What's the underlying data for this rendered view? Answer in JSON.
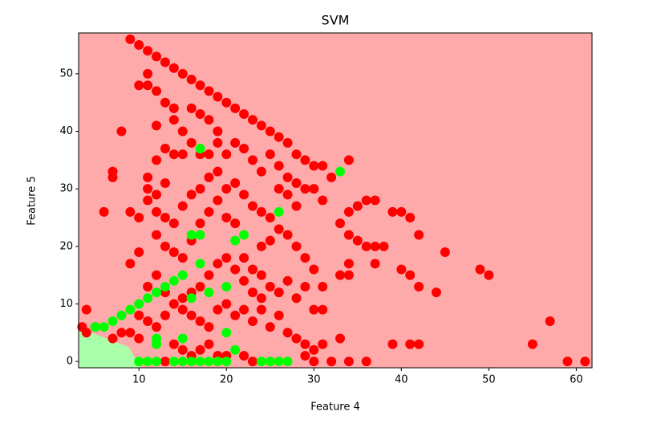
{
  "chart_data": {
    "type": "scatter",
    "title": "SVM",
    "x_label": "Feature 4",
    "y_label": "Feature 5",
    "xlim": [
      3.1,
      61.8
    ],
    "ylim": [
      -1.1,
      57.1
    ],
    "xticks": [
      10,
      20,
      30,
      40,
      50,
      60
    ],
    "yticks": [
      0,
      10,
      20,
      30,
      40,
      50
    ],
    "series": [
      {
        "color": "#ff0000",
        "x": [
          9,
          10,
          11,
          12,
          13,
          14,
          15,
          16,
          17,
          18,
          19,
          20,
          21,
          22,
          23,
          24,
          25,
          26,
          27,
          28,
          29,
          30,
          31,
          32,
          34,
          8,
          7,
          7,
          6,
          9,
          10,
          9,
          10,
          11,
          4,
          4,
          5,
          33,
          34,
          35,
          36,
          37,
          39,
          40,
          41,
          42,
          45,
          34,
          35,
          36,
          37,
          38,
          34,
          37,
          40,
          41,
          42,
          44,
          49,
          50,
          39,
          41,
          42,
          55,
          57,
          59,
          61,
          33,
          31,
          31,
          33,
          34,
          31,
          31,
          32,
          34,
          36,
          30,
          29,
          10,
          11,
          11,
          12,
          13,
          14,
          12,
          13,
          12,
          11,
          11,
          11,
          12,
          13,
          14,
          15,
          16,
          17,
          18,
          19,
          20,
          21,
          22,
          23,
          24,
          25,
          26,
          27,
          28,
          29,
          30,
          12,
          13,
          14,
          15,
          16,
          17,
          18,
          19,
          20,
          21,
          22,
          23,
          24,
          25,
          26,
          27,
          28,
          29,
          30,
          12,
          13,
          14,
          15,
          16,
          17,
          18,
          19,
          20,
          21,
          22,
          23,
          24,
          25,
          26,
          27,
          28,
          29,
          30,
          10,
          11,
          12,
          13,
          14,
          15,
          16,
          17,
          18,
          19,
          20,
          22,
          23,
          13,
          10,
          9,
          8,
          7,
          3.5,
          14,
          15,
          16,
          17,
          18,
          19,
          12,
          13,
          14,
          15,
          16,
          17,
          18,
          19,
          20,
          21,
          22,
          23,
          24,
          25,
          26,
          27,
          28,
          29,
          30,
          20,
          21,
          22,
          23,
          24,
          19,
          18,
          17,
          16,
          15,
          26,
          27,
          28,
          25,
          24
        ],
        "values": [
          56,
          55,
          54,
          53,
          52,
          51,
          50,
          49,
          48,
          47,
          46,
          45,
          44,
          43,
          42,
          41,
          40,
          39,
          38,
          36,
          35,
          34,
          34,
          32,
          35,
          40,
          33,
          32,
          26,
          26,
          25,
          17,
          19,
          13,
          9,
          5,
          6,
          24,
          26,
          27,
          28,
          28,
          26,
          26,
          25,
          22,
          19,
          22,
          21,
          20,
          20,
          20,
          17,
          17,
          16,
          15,
          13,
          12,
          16,
          15,
          3,
          3,
          3,
          3,
          7,
          0,
          0,
          4,
          3,
          13,
          15,
          15,
          9,
          28,
          0,
          0,
          0,
          0,
          1,
          48,
          48,
          50,
          47,
          45,
          44,
          41,
          37,
          35,
          32,
          30,
          28,
          29,
          31,
          36,
          36,
          38,
          36,
          36,
          38,
          36,
          38,
          37,
          35,
          33,
          36,
          34,
          32,
          31,
          30,
          30,
          22,
          20,
          19,
          18,
          21,
          24,
          26,
          28,
          30,
          31,
          29,
          27,
          26,
          25,
          23,
          22,
          20,
          18,
          16,
          15,
          12,
          10,
          9,
          8,
          7,
          6,
          9,
          10,
          8,
          9,
          7,
          9,
          6,
          8,
          5,
          4,
          3,
          2,
          8,
          7,
          6,
          8,
          3,
          2,
          1,
          2,
          3,
          1,
          1,
          1,
          0,
          0,
          4,
          5,
          5,
          4,
          6,
          42,
          40,
          44,
          43,
          42,
          40,
          26,
          25,
          24,
          27,
          29,
          30,
          32,
          33,
          25,
          24,
          18,
          16,
          15,
          13,
          12,
          14,
          11,
          13,
          9,
          18,
          16,
          14,
          12,
          11,
          17,
          15,
          13,
          12,
          11,
          30,
          29,
          27,
          21,
          20
        ]
      },
      {
        "color": "#00ff00",
        "x": [
          5,
          6,
          7,
          8,
          9,
          10,
          11,
          12,
          13,
          14,
          15,
          16,
          17,
          17,
          16,
          18,
          20,
          21,
          22,
          26,
          17,
          33,
          12,
          12,
          10,
          11,
          12,
          14,
          15,
          16,
          17,
          18,
          19,
          20,
          20,
          24,
          25,
          26,
          27,
          21,
          15
        ],
        "values": [
          6,
          6,
          7,
          8,
          9,
          10,
          11,
          12,
          13,
          14,
          15,
          22,
          22,
          17,
          11,
          12,
          13,
          21,
          22,
          26,
          37,
          33,
          4,
          3,
          0,
          0,
          0,
          0,
          0,
          0,
          0,
          0,
          0,
          0,
          5,
          0,
          0,
          0,
          0,
          2,
          4
        ]
      }
    ]
  }
}
